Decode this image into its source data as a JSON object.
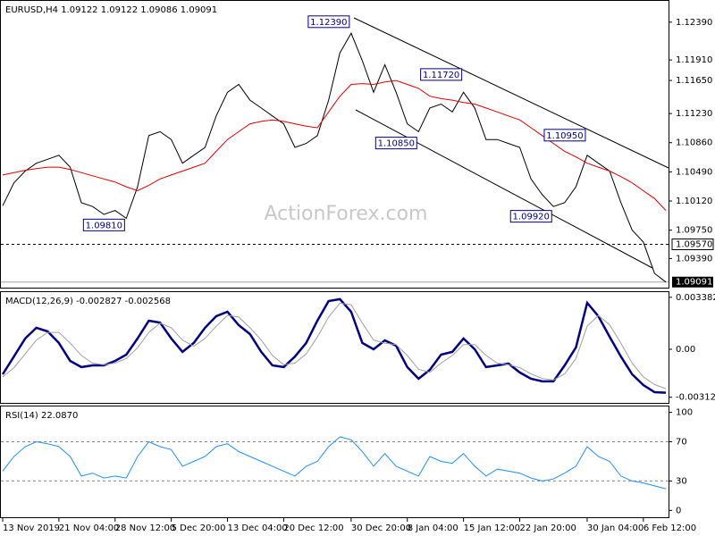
{
  "chart_data": [
    {
      "type": "line",
      "title": "EURUSD,H4  1.09122 1.09122 1.09086 1.09091",
      "watermark": "ActionForex.com",
      "xlim": [
        0,
        59
      ],
      "ylim": [
        1.0902,
        1.1266
      ],
      "yticks": [
        {
          "value": 1.1239,
          "label": "1.12390"
        },
        {
          "value": 1.1191,
          "label": "1.11910"
        },
        {
          "value": 1.1165,
          "label": "1.11650"
        },
        {
          "value": 1.1123,
          "label": "1.11230"
        },
        {
          "value": 1.1086,
          "label": "1.10860"
        },
        {
          "value": 1.1049,
          "label": "1.10490"
        },
        {
          "value": 1.1012,
          "label": "1.10120"
        },
        {
          "value": 1.0975,
          "label": "1.09750"
        },
        {
          "value": 1.0939,
          "label": "1.09390"
        }
      ],
      "series": [
        {
          "color": "#000000",
          "values": [
            1.1006,
            1.1035,
            1.105,
            1.106,
            1.1065,
            1.107,
            1.1055,
            1.101,
            1.1005,
            1.0995,
            1.1,
            1.099,
            1.103,
            1.1095,
            1.11,
            1.109,
            1.106,
            1.107,
            1.108,
            1.112,
            1.115,
            1.116,
            1.114,
            1.113,
            1.112,
            1.111,
            1.108,
            1.1085,
            1.1095,
            1.114,
            1.12,
            1.1225,
            1.119,
            1.115,
            1.1185,
            1.115,
            1.111,
            1.11,
            1.113,
            1.1135,
            1.1125,
            1.115,
            1.113,
            1.109,
            1.109,
            1.1085,
            1.108,
            1.104,
            1.102,
            1.1005,
            1.101,
            1.103,
            1.107,
            1.106,
            1.105,
            1.101,
            1.0975,
            1.096,
            1.092,
            1.09091
          ]
        },
        {
          "color": "#e00000",
          "values": [
            1.1045,
            1.1048,
            1.1051,
            1.1053,
            1.1055,
            1.1055,
            1.1052,
            1.1048,
            1.1044,
            1.104,
            1.1036,
            1.103,
            1.1025,
            1.1032,
            1.104,
            1.1045,
            1.105,
            1.1055,
            1.106,
            1.1075,
            1.109,
            1.11,
            1.111,
            1.1113,
            1.1115,
            1.1113,
            1.111,
            1.1107,
            1.1105,
            1.1125,
            1.1145,
            1.116,
            1.1161,
            1.116,
            1.1163,
            1.1165,
            1.116,
            1.1155,
            1.1145,
            1.1142,
            1.114,
            1.1137,
            1.1135,
            1.113,
            1.1125,
            1.112,
            1.1115,
            1.1105,
            1.1095,
            1.1085,
            1.1075,
            1.1068,
            1.106,
            1.1055,
            1.105,
            1.1043,
            1.1035,
            1.1025,
            1.1015,
            1.1
          ]
        }
      ],
      "annotations": [
        {
          "index": 31,
          "value": 1.1239,
          "label": "1.12390"
        },
        {
          "index": 41,
          "value": 1.1172,
          "label": "1.11720"
        },
        {
          "index": 37,
          "value": 1.1085,
          "label": "1.10850"
        },
        {
          "index": 52,
          "value": 1.1095,
          "label": "1.10950"
        },
        {
          "index": 11,
          "value": 1.0981,
          "label": "1.09810"
        },
        {
          "index": 49,
          "value": 1.0992,
          "label": "1.09920"
        }
      ],
      "price_markers": [
        {
          "value": 1.0957,
          "label": "1.09570",
          "style": "dashed"
        },
        {
          "value": 1.09091,
          "label": "1.09091",
          "style": "current"
        }
      ]
    },
    {
      "type": "line",
      "title": "MACD(12,26,9) -0.002827 -0.002568",
      "xlim": [
        0,
        59
      ],
      "ylim": [
        -0.00349,
        0.00372
      ],
      "yticks": [
        {
          "value": 0.003382,
          "label": "0.003382"
        },
        {
          "value": 0,
          "label": "0.00"
        },
        {
          "value": -0.003122,
          "label": "-0.003122"
        }
      ],
      "series": [
        {
          "color": "#000080",
          "values": [
            -0.00163,
            -0.00047,
            0.0007,
            0.0014,
            0.00116,
            0.00041,
            -0.00076,
            -0.00116,
            -0.00105,
            -0.00105,
            -0.00076,
            -0.00035,
            0.0007,
            0.00186,
            0.00174,
            0.0007,
            -0.00017,
            0.00041,
            0.0014,
            0.00215,
            0.00244,
            0.00157,
            0.00099,
            -0.00017,
            -0.00105,
            -0.00116,
            -0.00047,
            0.00041,
            0.00186,
            0.00314,
            0.00326,
            0.00244,
            0.00041,
            0,
            0.00058,
            0.00023,
            -0.00116,
            -0.00192,
            -0.00134,
            -0.00035,
            -0.00017,
            0.0007,
            0,
            -0.00116,
            -0.00105,
            -0.00093,
            -0.00151,
            -0.00192,
            -0.00209,
            -0.00209,
            -0.00105,
            0.00012,
            0.00302,
            0.00215,
            0.00081,
            -0.00047,
            -0.00163,
            -0.00233,
            -0.00279,
            -0.002827
          ]
        },
        {
          "color": "#a0a0a0",
          "values": [
            -0.0018,
            -0.0012,
            -0.0003,
            0.0006,
            0.0011,
            0.0011,
            0.0004,
            -0.0004,
            -0.0009,
            -0.001,
            -0.0009,
            -0.0006,
            0.0001,
            0.0011,
            0.0017,
            0.0014,
            0.0006,
            0.0002,
            0.0007,
            0.0015,
            0.0022,
            0.0021,
            0.0014,
            0.0006,
            -0.0004,
            -0.001,
            -0.0009,
            -0.0003,
            0.0008,
            0.0021,
            0.003,
            0.0029,
            0.0017,
            0.0006,
            0.0004,
            0.0003,
            -0.0004,
            -0.0013,
            -0.0015,
            -0.0009,
            -0.0004,
            0.0003,
            0.0003,
            -0.0004,
            -0.0009,
            -0.001,
            -0.0012,
            -0.0016,
            -0.0019,
            -0.002,
            -0.0016,
            -0.0006,
            0.0015,
            0.0022,
            0.0016,
            0.0004,
            -0.0009,
            -0.0018,
            -0.0023,
            -0.002568
          ]
        }
      ]
    },
    {
      "type": "line",
      "title": "RSI(14) 22.0870",
      "xlim": [
        0,
        59
      ],
      "ylim": [
        -7,
        106
      ],
      "yticks": [
        0,
        30,
        70,
        100
      ],
      "hlines": [
        30,
        70
      ],
      "xticks": [
        {
          "value": 0,
          "label": "13 Nov 2019"
        },
        {
          "value": 5,
          "label": "21 Nov 04:00"
        },
        {
          "value": 10,
          "label": "28 Nov 12:00"
        },
        {
          "value": 15,
          "label": "5 Dec 20:00"
        },
        {
          "value": 20,
          "label": "13 Dec 04:00"
        },
        {
          "value": 25,
          "label": "20 Dec 12:00"
        },
        {
          "value": 31,
          "label": "30 Dec 20:00"
        },
        {
          "value": 36,
          "label": "8 Jan 04:00"
        },
        {
          "value": 41,
          "label": "15 Jan 12:00"
        },
        {
          "value": 46,
          "label": "22 Jan 20:00"
        },
        {
          "value": 52,
          "label": "30 Jan 04:00"
        },
        {
          "value": 57,
          "label": "6 Feb 12:00"
        }
      ],
      "series": [
        {
          "color": "#1e90ff",
          "values": [
            40,
            55,
            65,
            70,
            68,
            65,
            55,
            35,
            38,
            33,
            35,
            33,
            55,
            70,
            65,
            62,
            45,
            50,
            55,
            65,
            68,
            60,
            55,
            50,
            45,
            40,
            35,
            45,
            50,
            65,
            75,
            72,
            60,
            45,
            58,
            45,
            40,
            35,
            55,
            50,
            48,
            58,
            45,
            35,
            42,
            40,
            38,
            33,
            30,
            32,
            38,
            45,
            65,
            55,
            50,
            35,
            30,
            28,
            25,
            22.087
          ]
        }
      ]
    }
  ]
}
